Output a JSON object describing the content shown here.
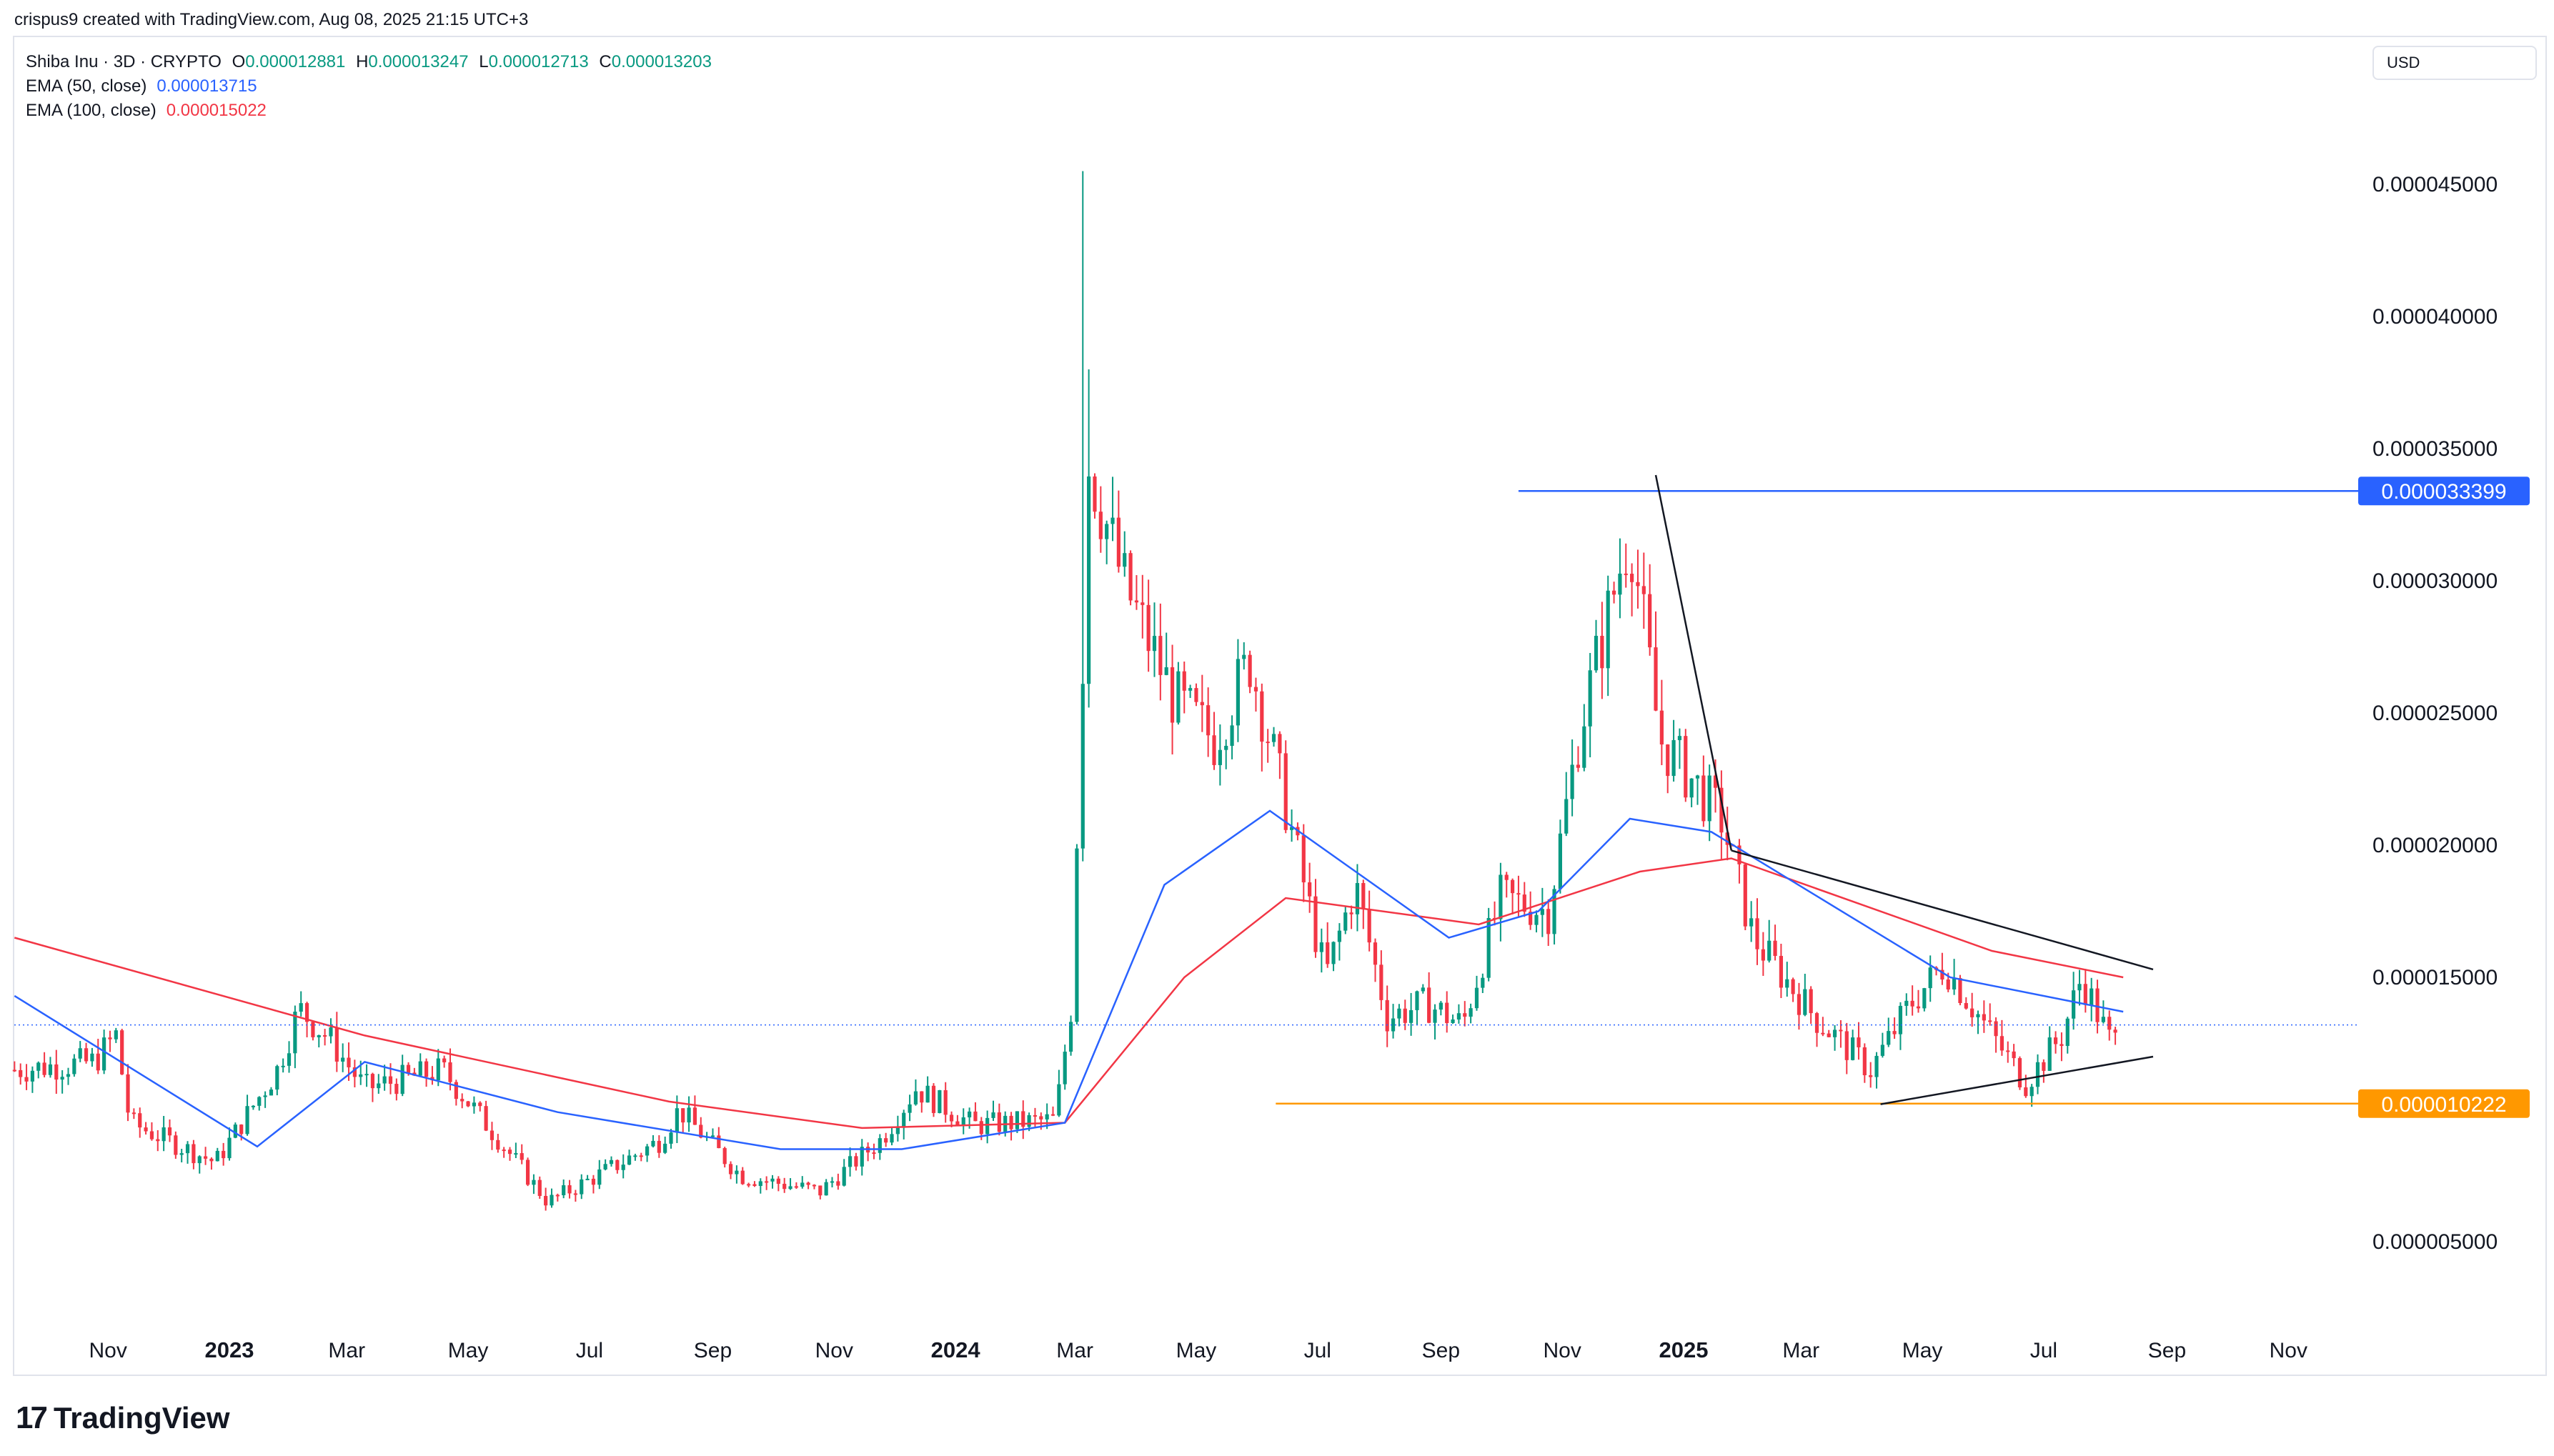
{
  "header": {
    "attribution": "crispus9 created with TradingView.com, Aug 08, 2025 21:15 UTC+3"
  },
  "legend": {
    "symbol": "Shiba Inu · 3D · CRYPTO",
    "ohlc": [
      {
        "k": "O",
        "v": "0.000012881"
      },
      {
        "k": "H",
        "v": "0.000013247"
      },
      {
        "k": "L",
        "v": "0.000012713"
      },
      {
        "k": "C",
        "v": "0.000013203"
      }
    ],
    "ema50_label": "EMA (50, close)",
    "ema50_value": "0.000013715",
    "ema100_label": "EMA (100, close)",
    "ema100_value": "0.000015022"
  },
  "currency": "USD",
  "brand": {
    "name": "TradingView",
    "mark": "17"
  },
  "colors": {
    "up": "#089981",
    "down": "#f23645",
    "ema50": "#2962ff",
    "ema100": "#f23645",
    "resistance": "#2962ff",
    "support": "#ff9800",
    "trendline": "#131722",
    "last_price": "#2962ff"
  },
  "chart_data": {
    "type": "candlestick",
    "instrument": "Shiba Inu · 3D · CRYPTO",
    "currency": "USD",
    "y_ticks": [
      "0.000045000",
      "0.000040000",
      "0.000035000",
      "0.000030000",
      "0.000025000",
      "0.000020000",
      "0.000015000",
      "0.000005000"
    ],
    "ylim": [
      3e-06,
      4.9e-05
    ],
    "x_labels": [
      {
        "label": "Nov",
        "date": "2022-11-01",
        "year": false
      },
      {
        "label": "2023",
        "date": "2023-01-01",
        "year": true
      },
      {
        "label": "Mar",
        "date": "2023-03-01",
        "year": false
      },
      {
        "label": "May",
        "date": "2023-05-01",
        "year": false
      },
      {
        "label": "Jul",
        "date": "2023-07-01",
        "year": false
      },
      {
        "label": "Sep",
        "date": "2023-09-01",
        "year": false
      },
      {
        "label": "Nov",
        "date": "2023-11-01",
        "year": false
      },
      {
        "label": "2024",
        "date": "2024-01-01",
        "year": true
      },
      {
        "label": "Mar",
        "date": "2024-03-01",
        "year": false
      },
      {
        "label": "May",
        "date": "2024-05-01",
        "year": false
      },
      {
        "label": "Jul",
        "date": "2024-07-01",
        "year": false
      },
      {
        "label": "Sep",
        "date": "2024-09-01",
        "year": false
      },
      {
        "label": "Nov",
        "date": "2024-11-01",
        "year": false
      },
      {
        "label": "2025",
        "date": "2025-01-01",
        "year": true
      },
      {
        "label": "Mar",
        "date": "2025-03-01",
        "year": false
      },
      {
        "label": "May",
        "date": "2025-05-01",
        "year": false
      },
      {
        "label": "Jul",
        "date": "2025-07-01",
        "year": false
      },
      {
        "label": "Sep",
        "date": "2025-09-01",
        "year": false
      },
      {
        "label": "Nov",
        "date": "2025-11-01",
        "year": false
      }
    ],
    "price_path": [
      {
        "date": "2022-09-15",
        "price": 1.15e-05
      },
      {
        "date": "2022-10-25",
        "price": 1.18e-05
      },
      {
        "date": "2022-11-05",
        "price": 1.28e-05
      },
      {
        "date": "2022-11-12",
        "price": 9.5e-06
      },
      {
        "date": "2022-12-25",
        "price": 8e-06
      },
      {
        "date": "2023-01-25",
        "price": 1.15e-05
      },
      {
        "date": "2023-02-05",
        "price": 1.38e-05
      },
      {
        "date": "2023-02-20",
        "price": 1.27e-05
      },
      {
        "date": "2023-03-10",
        "price": 1.08e-05
      },
      {
        "date": "2023-04-18",
        "price": 1.15e-05
      },
      {
        "date": "2023-05-15",
        "price": 9e-06
      },
      {
        "date": "2023-06-10",
        "price": 6.5e-06
      },
      {
        "date": "2023-07-10",
        "price": 7.7e-06
      },
      {
        "date": "2023-08-05",
        "price": 8.8e-06
      },
      {
        "date": "2023-08-15",
        "price": 1e-05
      },
      {
        "date": "2023-09-15",
        "price": 7.5e-06
      },
      {
        "date": "2023-10-25",
        "price": 6.9e-06
      },
      {
        "date": "2023-11-25",
        "price": 8.9e-06
      },
      {
        "date": "2023-12-12",
        "price": 1.08e-05
      },
      {
        "date": "2024-01-10",
        "price": 9.4e-06
      },
      {
        "date": "2024-02-20",
        "price": 9.6e-06
      },
      {
        "date": "2024-02-28",
        "price": 1.38e-05
      },
      {
        "date": "2024-03-05",
        "price": 2.7e-05
      },
      {
        "date": "2024-03-08",
        "price": 3.45e-05
      },
      {
        "date": "2024-03-25",
        "price": 3e-05
      },
      {
        "date": "2024-04-20",
        "price": 2.55e-05
      },
      {
        "date": "2024-05-10",
        "price": 2.4e-05
      },
      {
        "date": "2024-05-28",
        "price": 2.7e-05
      },
      {
        "date": "2024-06-15",
        "price": 2.15e-05
      },
      {
        "date": "2024-07-05",
        "price": 1.5e-05
      },
      {
        "date": "2024-07-20",
        "price": 1.85e-05
      },
      {
        "date": "2024-08-05",
        "price": 1.35e-05
      },
      {
        "date": "2024-08-25",
        "price": 1.4e-05
      },
      {
        "date": "2024-09-12",
        "price": 1.32e-05
      },
      {
        "date": "2024-10-01",
        "price": 1.8e-05
      },
      {
        "date": "2024-10-25",
        "price": 1.75e-05
      },
      {
        "date": "2024-11-10",
        "price": 2.45e-05
      },
      {
        "date": "2024-12-05",
        "price": 3.2e-05
      },
      {
        "date": "2024-12-20",
        "price": 2.4e-05
      },
      {
        "date": "2025-01-05",
        "price": 2.25e-05
      },
      {
        "date": "2025-01-20",
        "price": 2.1e-05
      },
      {
        "date": "2025-02-05",
        "price": 1.65e-05
      },
      {
        "date": "2025-03-08",
        "price": 1.35e-05
      },
      {
        "date": "2025-04-05",
        "price": 1.15e-05
      },
      {
        "date": "2025-04-25",
        "price": 1.4e-05
      },
      {
        "date": "2025-05-12",
        "price": 1.55e-05
      },
      {
        "date": "2025-06-05",
        "price": 1.28e-05
      },
      {
        "date": "2025-06-22",
        "price": 1.1e-05
      },
      {
        "date": "2025-07-10",
        "price": 1.28e-05
      },
      {
        "date": "2025-07-20",
        "price": 1.5e-05
      },
      {
        "date": "2025-08-05",
        "price": 1.23e-05
      },
      {
        "date": "2025-08-08",
        "price": 1.32e-05
      }
    ],
    "spikes": [
      {
        "date": "2024-03-05",
        "high": 4.55e-05
      },
      {
        "date": "2024-03-08",
        "high": 3.8e-05
      }
    ],
    "ema50_path": [
      {
        "date": "2022-09-15",
        "value": 1.43e-05
      },
      {
        "date": "2023-01-15",
        "value": 8.6e-06
      },
      {
        "date": "2023-03-10",
        "value": 1.18e-05
      },
      {
        "date": "2023-06-15",
        "value": 9.9e-06
      },
      {
        "date": "2023-10-05",
        "value": 8.5e-06
      },
      {
        "date": "2023-12-05",
        "value": 8.5e-06
      },
      {
        "date": "2024-02-25",
        "value": 9.5e-06
      },
      {
        "date": "2024-04-15",
        "value": 1.85e-05
      },
      {
        "date": "2024-06-07",
        "value": 2.13e-05
      },
      {
        "date": "2024-09-05",
        "value": 1.65e-05
      },
      {
        "date": "2024-10-20",
        "value": 1.75e-05
      },
      {
        "date": "2024-12-05",
        "value": 2.1e-05
      },
      {
        "date": "2025-01-15",
        "value": 2.05e-05
      },
      {
        "date": "2025-05-15",
        "value": 1.5e-05
      },
      {
        "date": "2025-08-10",
        "value": 1.37e-05
      }
    ],
    "ema100_path": [
      {
        "date": "2022-09-15",
        "value": 1.65e-05
      },
      {
        "date": "2023-03-10",
        "value": 1.28e-05
      },
      {
        "date": "2023-08-10",
        "value": 1.03e-05
      },
      {
        "date": "2023-11-15",
        "value": 9.3e-06
      },
      {
        "date": "2024-02-25",
        "value": 9.5e-06
      },
      {
        "date": "2024-04-25",
        "value": 1.5e-05
      },
      {
        "date": "2024-06-15",
        "value": 1.8e-05
      },
      {
        "date": "2024-09-20",
        "value": 1.7e-05
      },
      {
        "date": "2024-12-10",
        "value": 1.9e-05
      },
      {
        "date": "2025-01-25",
        "value": 1.95e-05
      },
      {
        "date": "2025-06-05",
        "value": 1.6e-05
      },
      {
        "date": "2025-08-10",
        "value": 1.5e-05
      }
    ],
    "horizontal_levels": [
      {
        "label": "0.000033399",
        "value": 3.3399e-05,
        "from": "2024-10-10",
        "color": "#2962ff"
      },
      {
        "label": "0.000010222",
        "value": 1.0222e-05,
        "from": "2024-06-10",
        "color": "#ff9800"
      }
    ],
    "last_price": {
      "value": 1.32e-05,
      "color": "#2962ff"
    },
    "trendlines": [
      {
        "from": {
          "date": "2024-12-18",
          "price": 3.4e-05
        },
        "to": {
          "date": "2025-01-25",
          "price": 1.98e-05
        }
      },
      {
        "from": {
          "date": "2025-01-25",
          "price": 1.98e-05
        },
        "to": {
          "date": "2025-08-25",
          "price": 1.53e-05
        }
      },
      {
        "from": {
          "date": "2025-04-10",
          "price": 1.02e-05
        },
        "to": {
          "date": "2025-08-25",
          "price": 1.2e-05
        }
      }
    ]
  }
}
